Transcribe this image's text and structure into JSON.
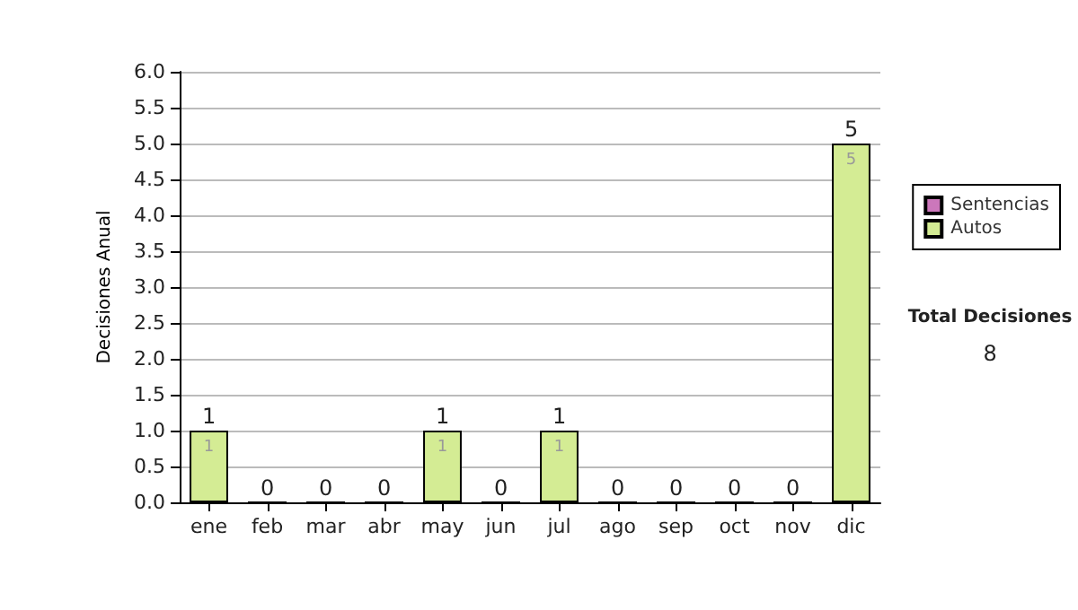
{
  "chart_data": {
    "type": "bar",
    "stacked": true,
    "ylabel": "Decisiones Anual",
    "categories": [
      "ene",
      "feb",
      "mar",
      "abr",
      "may",
      "jun",
      "jul",
      "ago",
      "sep",
      "oct",
      "nov",
      "dic"
    ],
    "series": [
      {
        "name": "Sentencias",
        "color": "#cc77bb",
        "values": [
          0,
          0,
          0,
          0,
          0,
          0,
          0,
          0,
          0,
          0,
          0,
          0
        ]
      },
      {
        "name": "Autos",
        "color": "#d4ec94",
        "values": [
          1,
          0,
          0,
          0,
          1,
          0,
          1,
          0,
          0,
          0,
          0,
          5
        ],
        "value_labels": [
          "1",
          null,
          null,
          null,
          "1",
          null,
          "1",
          null,
          null,
          null,
          null,
          "5"
        ]
      }
    ],
    "totals": [
      "1",
      "0",
      "0",
      "0",
      "1",
      "0",
      "1",
      "0",
      "0",
      "0",
      "0",
      "5"
    ],
    "ylim": [
      0,
      6
    ],
    "yticks": [
      {
        "value": 0,
        "label": "0.0"
      },
      {
        "value": 0.5,
        "label": "0.5"
      },
      {
        "value": 1,
        "label": "1.0"
      },
      {
        "value": 1.5,
        "label": "1.5"
      },
      {
        "value": 2,
        "label": "2.0"
      },
      {
        "value": 2.5,
        "label": "2.5"
      },
      {
        "value": 3,
        "label": "3.0"
      },
      {
        "value": 3.5,
        "label": "3.5"
      },
      {
        "value": 4,
        "label": "4.0"
      },
      {
        "value": 4.5,
        "label": "4.5"
      },
      {
        "value": 5,
        "label": "5.0"
      },
      {
        "value": 5.5,
        "label": "5.5"
      },
      {
        "value": 6,
        "label": "6.0"
      }
    ],
    "grid": "y",
    "legend": "right",
    "annotations": [
      "Total Decisiones",
      "8"
    ]
  }
}
